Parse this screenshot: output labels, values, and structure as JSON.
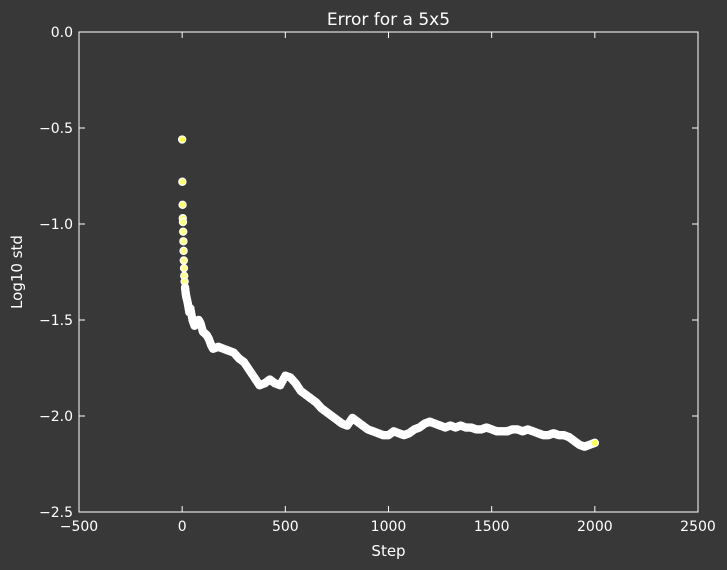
{
  "chart_data": {
    "type": "scatter",
    "title": "Error for a 5x5",
    "xlabel": "Step",
    "ylabel": "Log10 std",
    "xlim": [
      -500,
      2500
    ],
    "ylim": [
      -2.5,
      0.0
    ],
    "xticks": [
      -500,
      0,
      500,
      1000,
      1500,
      2000,
      2500
    ],
    "xtick_labels": [
      "−500",
      "0",
      "500",
      "1000",
      "1500",
      "2000",
      "2500"
    ],
    "yticks": [
      0.0,
      -0.5,
      -1.0,
      -1.5,
      -2.0,
      -2.5
    ],
    "ytick_labels": [
      "0.0",
      "−0.5",
      "−1.0",
      "−1.5",
      "−2.0",
      "−2.5"
    ],
    "grid": false,
    "colors": {
      "background": "#383838",
      "axes": "#ffffff",
      "text": "#ffffff",
      "marker_start": "#ffff5a",
      "marker_end": "#ffffff",
      "marker_edge": "#ffffff"
    },
    "series": [
      {
        "color_scale": "yellow-to-white by step",
        "x": [
          0,
          1,
          2,
          3,
          4,
          5,
          6,
          7,
          8,
          9,
          10,
          12,
          14,
          17,
          20,
          25,
          30,
          35,
          40,
          50,
          60,
          70,
          80,
          90,
          100,
          110,
          120,
          130,
          140,
          150,
          175,
          200,
          225,
          250,
          275,
          300,
          325,
          350,
          375,
          400,
          425,
          450,
          475,
          500,
          525,
          550,
          575,
          600,
          625,
          650,
          675,
          700,
          725,
          750,
          775,
          800,
          825,
          850,
          875,
          900,
          925,
          950,
          975,
          1000,
          1025,
          1050,
          1075,
          1100,
          1125,
          1150,
          1175,
          1200,
          1225,
          1250,
          1275,
          1300,
          1325,
          1350,
          1375,
          1400,
          1425,
          1450,
          1475,
          1500,
          1525,
          1550,
          1575,
          1600,
          1625,
          1650,
          1675,
          1700,
          1725,
          1750,
          1775,
          1800,
          1825,
          1850,
          1875,
          1900,
          1925,
          1950,
          1975,
          2000
        ],
        "y": [
          -0.56,
          -0.78,
          -0.9,
          -0.97,
          -0.99,
          -1.04,
          -1.09,
          -1.14,
          -1.19,
          -1.23,
          -1.27,
          -1.3,
          -1.33,
          -1.36,
          -1.38,
          -1.4,
          -1.43,
          -1.46,
          -1.44,
          -1.5,
          -1.53,
          -1.51,
          -1.5,
          -1.52,
          -1.56,
          -1.57,
          -1.58,
          -1.6,
          -1.63,
          -1.65,
          -1.64,
          -1.65,
          -1.66,
          -1.67,
          -1.7,
          -1.72,
          -1.76,
          -1.8,
          -1.84,
          -1.83,
          -1.81,
          -1.83,
          -1.84,
          -1.79,
          -1.8,
          -1.83,
          -1.87,
          -1.89,
          -1.91,
          -1.93,
          -1.96,
          -1.98,
          -2.0,
          -2.02,
          -2.04,
          -2.05,
          -2.01,
          -2.03,
          -2.05,
          -2.07,
          -2.08,
          -2.09,
          -2.1,
          -2.1,
          -2.08,
          -2.09,
          -2.1,
          -2.09,
          -2.07,
          -2.06,
          -2.04,
          -2.03,
          -2.04,
          -2.05,
          -2.06,
          -2.05,
          -2.06,
          -2.05,
          -2.06,
          -2.06,
          -2.07,
          -2.07,
          -2.06,
          -2.07,
          -2.08,
          -2.08,
          -2.08,
          -2.07,
          -2.07,
          -2.08,
          -2.07,
          -2.08,
          -2.09,
          -2.1,
          -2.1,
          -2.09,
          -2.1,
          -2.1,
          -2.11,
          -2.13,
          -2.15,
          -2.16,
          -2.15,
          -2.14
        ]
      }
    ]
  }
}
